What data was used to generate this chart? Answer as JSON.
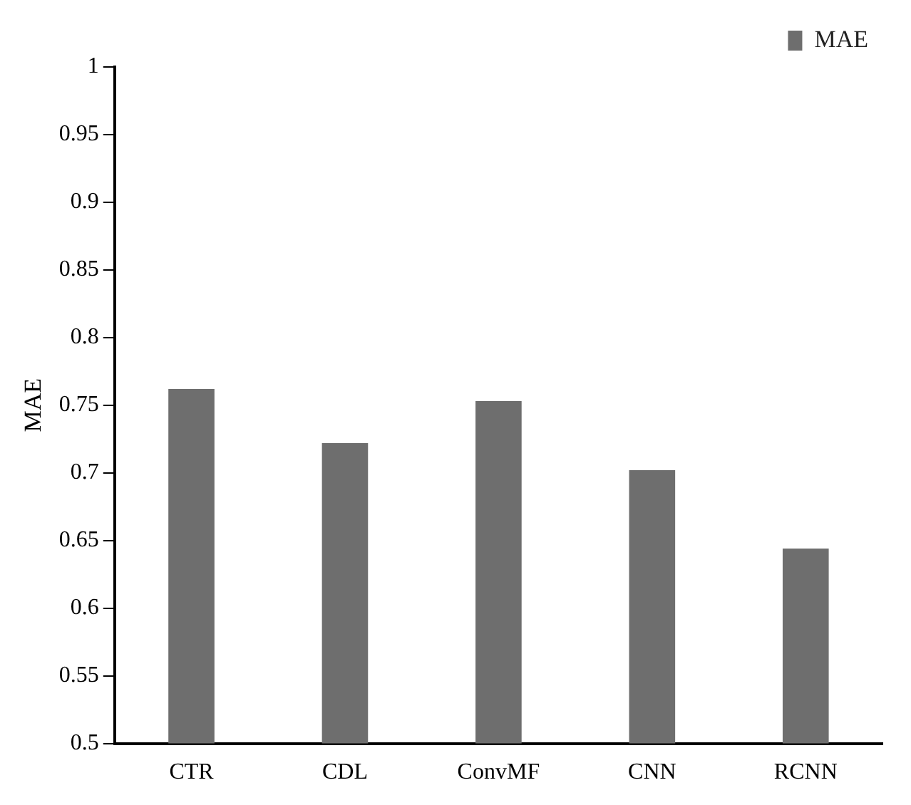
{
  "chart_data": {
    "type": "bar",
    "ylabel": "MAE",
    "categories": [
      "CTR",
      "CDL",
      "ConvMF",
      "CNN",
      "RCNN"
    ],
    "series": [
      {
        "name": "MAE",
        "color": "#6e6e6e",
        "values": [
          0.762,
          0.722,
          0.753,
          0.702,
          0.644
        ]
      }
    ],
    "ylim": [
      0.5,
      1
    ],
    "yticks": [
      0.5,
      0.55,
      0.6,
      0.65,
      0.7,
      0.75,
      0.8,
      0.85,
      0.9,
      0.95,
      1
    ],
    "grid": false,
    "legend": "top right"
  }
}
